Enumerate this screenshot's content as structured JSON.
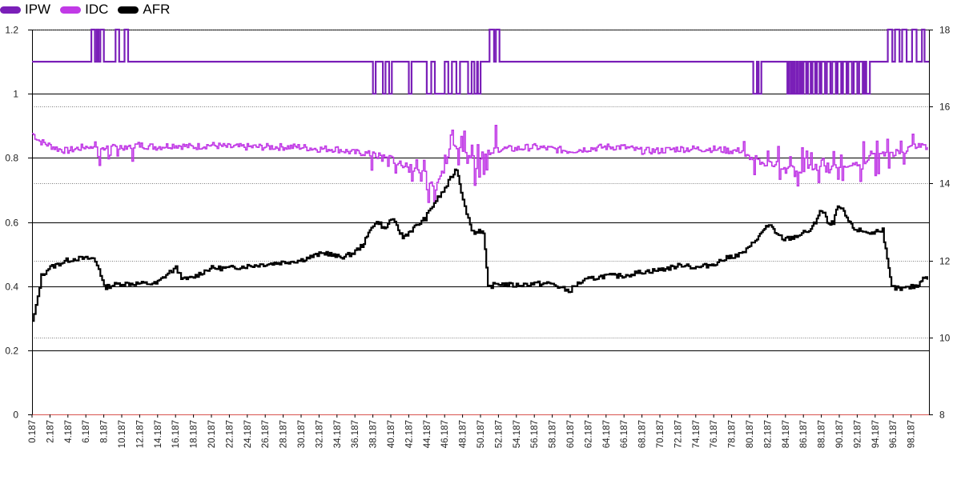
{
  "chart_data": {
    "type": "line",
    "legend": {
      "position": "top-left",
      "items": [
        {
          "name": "IPW",
          "color": "#7a1fb8"
        },
        {
          "name": "IDC",
          "color": "#c13ae6"
        },
        {
          "name": "AFR",
          "color": "#000000"
        }
      ]
    },
    "left_axis": {
      "ticks": [
        0,
        0.2,
        0.4,
        0.6,
        0.8,
        1,
        1.2
      ],
      "tick_labels": [
        "0",
        "0.2",
        "0.4",
        "0.6",
        "0.8",
        "1",
        "1.2"
      ],
      "ylim": [
        0,
        1.2
      ]
    },
    "right_axis": {
      "ticks": [
        8,
        10,
        12,
        14,
        16,
        18
      ],
      "tick_labels": [
        "8",
        "10",
        "12",
        "14",
        "16",
        "18"
      ],
      "ylim": [
        8,
        18
      ]
    },
    "x_axis": {
      "tick_labels": [
        "0.187",
        "2.187",
        "4.187",
        "6.187",
        "8.187",
        "10.187",
        "12.187",
        "14.187",
        "16.187",
        "18.187",
        "20.187",
        "22.187",
        "24.187",
        "26.187",
        "28.187",
        "30.187",
        "32.187",
        "34.187",
        "36.187",
        "38.187",
        "40.187",
        "42.187",
        "44.187",
        "46.187",
        "48.187",
        "50.187",
        "52.187",
        "54.187",
        "56.187",
        "58.187",
        "60.187",
        "62.187",
        "64.187",
        "66.187",
        "68.187",
        "70.187",
        "72.187",
        "74.187",
        "76.187",
        "78.187",
        "80.187",
        "82.187",
        "84.187",
        "86.187",
        "88.187",
        "90.187",
        "92.187",
        "94.187",
        "96.187",
        "98.187"
      ],
      "xlim": [
        0.187,
        100.187
      ]
    },
    "grid": {
      "major_left": true,
      "minor_right_dotted": true
    },
    "series": [
      {
        "name": "IPW",
        "axis": "left",
        "color": "#7a1fb8",
        "baseline": 1.1,
        "high": 1.2,
        "low": 1.0,
        "spikes_up": [
          [
            6.8,
            7.2
          ],
          [
            7.4,
            7.6
          ],
          [
            7.8,
            8.2
          ],
          [
            9.5,
            9.9
          ],
          [
            10.5,
            10.9
          ],
          [
            51.2,
            51.7
          ],
          [
            51.9,
            52.3
          ],
          [
            95.6,
            96.1
          ],
          [
            96.4,
            96.9
          ],
          [
            97.2,
            97.7
          ],
          [
            98.3,
            98.8
          ],
          [
            99.4,
            99.7
          ]
        ],
        "spikes_down": [
          [
            38.2,
            38.5
          ],
          [
            39.3,
            39.6
          ],
          [
            40.0,
            40.3
          ],
          [
            42.2,
            42.5
          ],
          [
            44.2,
            44.7
          ],
          [
            45.1,
            46.2
          ],
          [
            46.6,
            47.0
          ],
          [
            47.5,
            47.9
          ],
          [
            48.8,
            49.2
          ],
          [
            49.5,
            49.8
          ],
          [
            49.9,
            50.2
          ],
          [
            80.6,
            81.0
          ],
          [
            81.2,
            81.5
          ],
          [
            84.4,
            84.6
          ],
          [
            84.8,
            85.0
          ],
          [
            85.2,
            85.4
          ],
          [
            85.6,
            85.8
          ],
          [
            86.0,
            86.2
          ],
          [
            86.5,
            86.7
          ],
          [
            87.0,
            87.2
          ],
          [
            87.5,
            87.7
          ],
          [
            88.0,
            88.2
          ],
          [
            88.6,
            88.8
          ],
          [
            89.2,
            89.4
          ],
          [
            89.8,
            90.0
          ],
          [
            90.4,
            90.6
          ],
          [
            91.0,
            91.2
          ],
          [
            91.6,
            91.8
          ],
          [
            92.2,
            92.4
          ],
          [
            92.8,
            93.0
          ],
          [
            93.2,
            93.6
          ]
        ]
      },
      {
        "name": "IDC",
        "axis": "right",
        "color": "#c13ae6",
        "x": [
          0.187,
          1.0,
          2.0,
          3.0,
          4.0,
          5.0,
          6.0,
          7.0,
          8.0,
          10.0,
          12.0,
          14.0,
          16.0,
          18.0,
          20.0,
          22.0,
          24.0,
          26.0,
          28.0,
          30.0,
          32.0,
          34.0,
          36.0,
          37.0,
          38.0,
          39.0,
          40.0,
          41.0,
          42.0,
          43.0,
          44.0,
          45.0,
          46.0,
          47.0,
          48.0,
          49.0,
          50.0,
          51.0,
          52.0,
          54.0,
          56.0,
          58.0,
          60.0,
          62.0,
          64.0,
          66.0,
          68.0,
          70.0,
          72.0,
          74.0,
          76.0,
          78.0,
          79.0,
          80.0,
          81.0,
          82.0,
          83.0,
          84.0,
          85.0,
          86.0,
          87.0,
          88.0,
          89.0,
          90.0,
          91.0,
          92.0,
          93.0,
          94.0,
          95.0,
          96.0,
          97.0,
          98.0,
          99.0,
          100.0
        ],
        "y": [
          15.3,
          15.1,
          15.0,
          14.9,
          14.85,
          14.9,
          14.95,
          15.0,
          14.9,
          14.95,
          15.0,
          14.95,
          15.0,
          14.95,
          15.0,
          14.95,
          14.95,
          14.95,
          14.95,
          14.95,
          14.9,
          14.9,
          14.8,
          14.8,
          14.75,
          14.7,
          14.65,
          14.55,
          14.4,
          14.3,
          14.1,
          14.0,
          14.3,
          15.1,
          14.9,
          14.6,
          14.7,
          14.85,
          14.9,
          14.9,
          14.95,
          14.9,
          14.85,
          14.9,
          14.95,
          14.95,
          14.85,
          14.85,
          14.9,
          14.9,
          14.9,
          14.85,
          14.85,
          14.7,
          14.6,
          14.5,
          14.5,
          14.45,
          14.4,
          14.3,
          14.4,
          14.45,
          14.35,
          14.45,
          14.35,
          14.5,
          14.6,
          14.7,
          14.75,
          14.8,
          14.85,
          14.9,
          15.0,
          14.95
        ]
      },
      {
        "name": "AFR",
        "axis": "right",
        "color": "#000000",
        "x": [
          0.187,
          0.6,
          1.2,
          2.0,
          3.0,
          4.0,
          5.0,
          6.0,
          7.0,
          7.6,
          8.2,
          9.0,
          10.0,
          12.0,
          14.0,
          15.5,
          16.2,
          17.0,
          18.0,
          20.0,
          22.0,
          24.0,
          26.0,
          28.0,
          30.0,
          32.0,
          33.0,
          34.0,
          35.0,
          36.0,
          37.0,
          37.5,
          38.0,
          38.8,
          39.5,
          40.2,
          41.0,
          41.5,
          42.0,
          42.5,
          43.0,
          44.0,
          45.0,
          46.0,
          47.0,
          47.5,
          48.0,
          49.0,
          49.5,
          50.0,
          50.5,
          51.0,
          52.0,
          54.0,
          56.0,
          58.0,
          59.0,
          60.0,
          61.0,
          62.0,
          64.0,
          66.0,
          68.0,
          70.0,
          72.0,
          73.0,
          74.0,
          76.0,
          78.0,
          79.0,
          80.0,
          81.0,
          81.5,
          82.0,
          82.5,
          83.0,
          84.0,
          85.0,
          86.0,
          87.0,
          87.5,
          88.0,
          88.5,
          89.0,
          89.5,
          90.0,
          90.5,
          91.0,
          91.5,
          92.0,
          93.0,
          94.0,
          94.5,
          95.0,
          95.5,
          96.0,
          97.0,
          98.0,
          99.0,
          99.5,
          100.0
        ],
        "y": [
          10.4,
          10.8,
          11.6,
          11.8,
          11.9,
          12.0,
          12.05,
          12.05,
          12.05,
          11.8,
          11.3,
          11.35,
          11.4,
          11.4,
          11.4,
          11.7,
          11.8,
          11.5,
          11.55,
          11.8,
          11.8,
          11.85,
          11.9,
          11.95,
          12.0,
          12.15,
          12.2,
          12.1,
          12.1,
          12.2,
          12.4,
          12.6,
          12.9,
          13.0,
          12.8,
          13.1,
          12.8,
          12.6,
          12.7,
          12.8,
          12.9,
          13.1,
          13.5,
          13.8,
          14.2,
          14.4,
          13.8,
          12.9,
          12.7,
          12.8,
          12.7,
          11.3,
          11.4,
          11.35,
          11.4,
          11.4,
          11.3,
          11.2,
          11.4,
          11.5,
          11.6,
          11.6,
          11.7,
          11.75,
          11.85,
          11.9,
          11.8,
          11.9,
          12.1,
          12.15,
          12.3,
          12.6,
          12.7,
          12.9,
          12.9,
          12.7,
          12.55,
          12.6,
          12.7,
          12.8,
          13.0,
          13.3,
          13.2,
          12.9,
          13.0,
          13.4,
          13.3,
          13.1,
          12.9,
          12.8,
          12.75,
          12.7,
          12.8,
          12.8,
          12.0,
          11.3,
          11.25,
          11.3,
          11.35,
          11.6,
          11.5
        ]
      }
    ]
  }
}
